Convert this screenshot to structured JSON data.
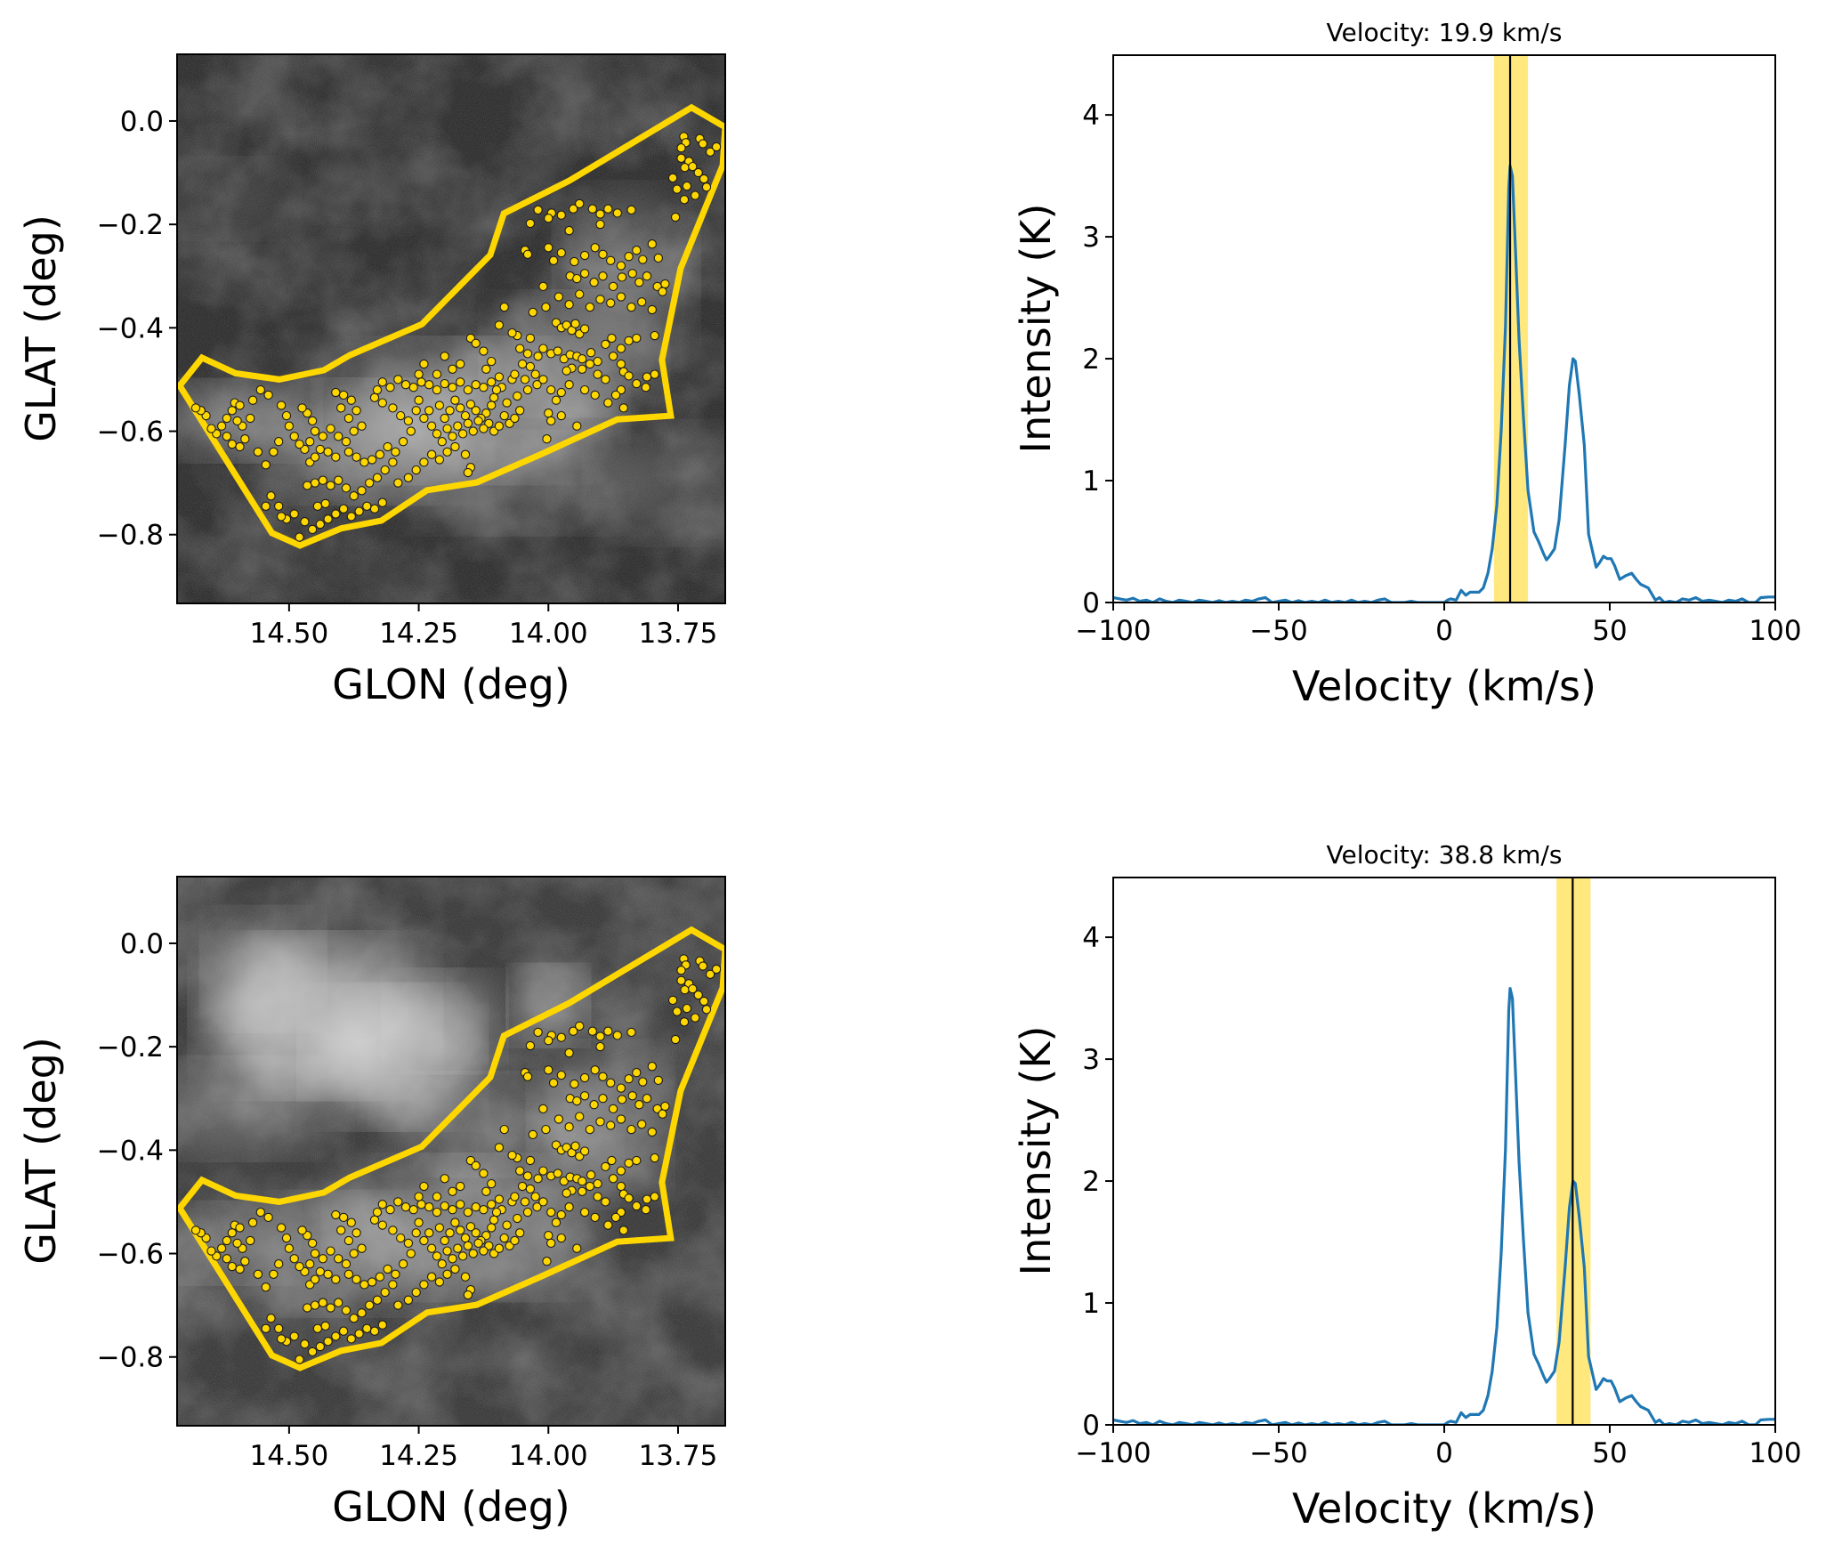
{
  "figure": {
    "panels": 4,
    "layout": "2 rows x 2 columns: left = GLON/GLAT map with region polygon and sources, right = velocity spectrum"
  },
  "chart_data": [
    {
      "id": "map-top",
      "type": "scatter",
      "title": "",
      "xlabel": "GLON (deg)",
      "ylabel": "GLAT (deg)",
      "xlim": [
        14.716,
        13.659
      ],
      "ylim": [
        -0.933,
        0.129
      ],
      "x_inverted": true,
      "xticks": [
        14.5,
        14.25,
        14.0,
        13.75
      ],
      "xtick_labels": [
        "14.50",
        "14.25",
        "14.00",
        "13.75"
      ],
      "yticks": [
        0.0,
        -0.2,
        -0.4,
        -0.6,
        -0.8
      ],
      "ytick_labels": [
        "0.0",
        "−0.2",
        "−0.4",
        "−0.6",
        "−0.8"
      ],
      "background": "grayscale integrated intensity map (channel near 19.9 km/s), emission concentrated inside polygon",
      "background_variant": "low",
      "polygon_color": "#FFD700",
      "marker_color": "#FFD700",
      "marker_edge": "#1a1a1a"
    },
    {
      "id": "spectrum-top",
      "type": "line",
      "title": "Velocity: 19.9 km/s",
      "xlabel": "Velocity (km/s)",
      "ylabel": "Intensity (K)",
      "xlim": [
        -100,
        100
      ],
      "ylim": [
        0,
        4.49
      ],
      "xticks": [
        -100,
        -50,
        0,
        50,
        100
      ],
      "xtick_labels": [
        "−100",
        "−50",
        "0",
        "50",
        "100"
      ],
      "yticks": [
        0,
        1,
        2,
        3,
        4
      ],
      "ytick_labels": [
        "0",
        "1",
        "2",
        "3",
        "4"
      ],
      "line_color": "#1f77b4",
      "vline": 19.9,
      "vline_color": "#000000",
      "band": [
        15.0,
        25.3
      ],
      "band_color": "#FFE97F"
    },
    {
      "id": "map-bottom",
      "type": "scatter",
      "title": "",
      "xlabel": "GLON (deg)",
      "ylabel": "GLAT (deg)",
      "xlim": [
        14.716,
        13.659
      ],
      "ylim": [
        -0.933,
        0.129
      ],
      "x_inverted": true,
      "xticks": [
        14.5,
        14.25,
        14.0,
        13.75
      ],
      "xtick_labels": [
        "14.50",
        "14.25",
        "14.00",
        "13.75"
      ],
      "yticks": [
        0.0,
        -0.2,
        -0.4,
        -0.6,
        -0.8
      ],
      "ytick_labels": [
        "0.0",
        "−0.2",
        "−0.4",
        "−0.6",
        "−0.8"
      ],
      "background": "grayscale integrated intensity map (channel near 38.8 km/s), bright emission in upper-left outside polygon",
      "background_variant": "high",
      "polygon_color": "#FFD700",
      "marker_color": "#FFD700",
      "marker_edge": "#1a1a1a"
    },
    {
      "id": "spectrum-bottom",
      "type": "line",
      "title": "Velocity: 38.8 km/s",
      "xlabel": "Velocity (km/s)",
      "ylabel": "Intensity (K)",
      "xlim": [
        -100,
        100
      ],
      "ylim": [
        0,
        4.49
      ],
      "xticks": [
        -100,
        -50,
        0,
        50,
        100
      ],
      "xtick_labels": [
        "−100",
        "−50",
        "0",
        "50",
        "100"
      ],
      "yticks": [
        0,
        1,
        2,
        3,
        4
      ],
      "ytick_labels": [
        "0",
        "1",
        "2",
        "3",
        "4"
      ],
      "line_color": "#1f77b4",
      "vline": 38.8,
      "vline_color": "#000000",
      "band": [
        33.9,
        44.2
      ],
      "band_color": "#FFE97F"
    }
  ],
  "region_polygon": [
    [
      13.724,
      0.026
    ],
    [
      13.659,
      -0.012
    ],
    [
      13.664,
      -0.086
    ],
    [
      13.745,
      -0.285
    ],
    [
      13.781,
      -0.462
    ],
    [
      13.764,
      -0.57
    ],
    [
      13.867,
      -0.577
    ],
    [
      14.013,
      -0.644
    ],
    [
      14.138,
      -0.699
    ],
    [
      14.234,
      -0.714
    ],
    [
      14.322,
      -0.773
    ],
    [
      14.4,
      -0.788
    ],
    [
      14.479,
      -0.821
    ],
    [
      14.533,
      -0.797
    ],
    [
      14.711,
      -0.512
    ],
    [
      14.668,
      -0.458
    ],
    [
      14.603,
      -0.488
    ],
    [
      14.519,
      -0.5
    ],
    [
      14.433,
      -0.482
    ],
    [
      14.383,
      -0.453
    ],
    [
      14.244,
      -0.393
    ],
    [
      14.112,
      -0.259
    ],
    [
      14.086,
      -0.179
    ],
    [
      13.959,
      -0.115
    ]
  ],
  "sources": [
    [
      13.739,
      -0.03
    ],
    [
      13.735,
      -0.042
    ],
    [
      13.744,
      -0.052
    ],
    [
      13.708,
      -0.034
    ],
    [
      13.702,
      -0.044
    ],
    [
      13.688,
      -0.06
    ],
    [
      13.676,
      -0.05
    ],
    [
      13.744,
      -0.072
    ],
    [
      13.729,
      -0.078
    ],
    [
      13.737,
      -0.09
    ],
    [
      13.722,
      -0.088
    ],
    [
      13.711,
      -0.1
    ],
    [
      13.7,
      -0.112
    ],
    [
      13.752,
      -0.132
    ],
    [
      13.738,
      -0.152
    ],
    [
      13.717,
      -0.144
    ],
    [
      13.695,
      -0.128
    ],
    [
      13.755,
      -0.186
    ],
    [
      13.733,
      -0.126
    ],
    [
      13.76,
      -0.11
    ],
    [
      13.94,
      -0.16
    ],
    [
      13.952,
      -0.17
    ],
    [
      13.975,
      -0.182
    ],
    [
      13.994,
      -0.178
    ],
    [
      14.0,
      -0.188
    ],
    [
      14.02,
      -0.172
    ],
    [
      14.035,
      -0.198
    ],
    [
      13.915,
      -0.17
    ],
    [
      13.9,
      -0.18
    ],
    [
      13.885,
      -0.17
    ],
    [
      13.867,
      -0.178
    ],
    [
      13.84,
      -0.172
    ],
    [
      13.96,
      -0.212
    ],
    [
      13.9,
      -0.2
    ],
    [
      14.045,
      -0.25
    ],
    [
      14.04,
      -0.258
    ],
    [
      14.0,
      -0.245
    ],
    [
      13.99,
      -0.27
    ],
    [
      13.975,
      -0.255
    ],
    [
      13.95,
      -0.272
    ],
    [
      13.93,
      -0.26
    ],
    [
      13.91,
      -0.245
    ],
    [
      13.895,
      -0.258
    ],
    [
      13.88,
      -0.27
    ],
    [
      13.86,
      -0.28
    ],
    [
      13.845,
      -0.262
    ],
    [
      13.83,
      -0.25
    ],
    [
      13.818,
      -0.268
    ],
    [
      13.8,
      -0.238
    ],
    [
      13.788,
      -0.265
    ],
    [
      13.958,
      -0.3
    ],
    [
      13.945,
      -0.305
    ],
    [
      13.93,
      -0.295
    ],
    [
      13.912,
      -0.312
    ],
    [
      13.895,
      -0.3
    ],
    [
      13.875,
      -0.32
    ],
    [
      13.858,
      -0.302
    ],
    [
      13.838,
      -0.295
    ],
    [
      13.825,
      -0.312
    ],
    [
      13.81,
      -0.3
    ],
    [
      13.79,
      -0.32
    ],
    [
      13.775,
      -0.315
    ],
    [
      14.01,
      -0.32
    ],
    [
      13.98,
      -0.34
    ],
    [
      13.96,
      -0.355
    ],
    [
      13.94,
      -0.335
    ],
    [
      13.92,
      -0.36
    ],
    [
      13.9,
      -0.345
    ],
    [
      13.88,
      -0.352
    ],
    [
      13.86,
      -0.34
    ],
    [
      13.84,
      -0.36
    ],
    [
      13.82,
      -0.35
    ],
    [
      13.8,
      -0.365
    ],
    [
      13.78,
      -0.33
    ],
    [
      14.03,
      -0.37
    ],
    [
      14.005,
      -0.36
    ],
    [
      13.985,
      -0.39
    ],
    [
      13.975,
      -0.4
    ],
    [
      13.965,
      -0.395
    ],
    [
      13.955,
      -0.405
    ],
    [
      13.948,
      -0.392
    ],
    [
      13.94,
      -0.412
    ],
    [
      13.93,
      -0.402
    ],
    [
      14.085,
      -0.36
    ],
    [
      14.15,
      -0.42
    ],
    [
      14.14,
      -0.43
    ],
    [
      14.125,
      -0.445
    ],
    [
      14.06,
      -0.415
    ],
    [
      14.035,
      -0.42
    ],
    [
      14.01,
      -0.44
    ],
    [
      13.995,
      -0.45
    ],
    [
      13.982,
      -0.445
    ],
    [
      13.97,
      -0.46
    ],
    [
      13.958,
      -0.452
    ],
    [
      13.945,
      -0.455
    ],
    [
      13.935,
      -0.46
    ],
    [
      13.918,
      -0.448
    ],
    [
      13.905,
      -0.465
    ],
    [
      13.89,
      -0.432
    ],
    [
      13.878,
      -0.42
    ],
    [
      13.86,
      -0.47
    ],
    [
      13.855,
      -0.485
    ],
    [
      13.845,
      -0.493
    ],
    [
      13.83,
      -0.508
    ],
    [
      13.81,
      -0.495
    ],
    [
      13.795,
      -0.49
    ],
    [
      13.812,
      -0.515
    ],
    [
      13.955,
      -0.478
    ],
    [
      13.965,
      -0.483
    ],
    [
      14.04,
      -0.45
    ],
    [
      14.05,
      -0.47
    ],
    [
      14.07,
      -0.5
    ],
    [
      14.09,
      -0.515
    ],
    [
      14.105,
      -0.535
    ],
    [
      14.08,
      -0.545
    ],
    [
      14.06,
      -0.532
    ],
    [
      14.04,
      -0.52
    ],
    [
      14.022,
      -0.51
    ],
    [
      14.0,
      -0.565
    ],
    [
      13.995,
      -0.58
    ],
    [
      13.975,
      -0.57
    ],
    [
      13.945,
      -0.59
    ],
    [
      13.86,
      -0.52
    ],
    [
      13.855,
      -0.555
    ],
    [
      14.003,
      -0.615
    ],
    [
      14.11,
      -0.55
    ],
    [
      14.12,
      -0.565
    ],
    [
      14.13,
      -0.575
    ],
    [
      14.14,
      -0.56
    ],
    [
      14.15,
      -0.548
    ],
    [
      14.16,
      -0.57
    ],
    [
      14.17,
      -0.555
    ],
    [
      14.18,
      -0.54
    ],
    [
      14.19,
      -0.56
    ],
    [
      14.2,
      -0.575
    ],
    [
      14.21,
      -0.55
    ],
    [
      14.115,
      -0.585
    ],
    [
      14.125,
      -0.595
    ],
    [
      14.135,
      -0.58
    ],
    [
      14.145,
      -0.6
    ],
    [
      14.155,
      -0.585
    ],
    [
      14.165,
      -0.605
    ],
    [
      14.175,
      -0.59
    ],
    [
      14.185,
      -0.61
    ],
    [
      14.195,
      -0.595
    ],
    [
      14.205,
      -0.62
    ],
    [
      14.215,
      -0.605
    ],
    [
      14.105,
      -0.6
    ],
    [
      14.095,
      -0.59
    ],
    [
      14.085,
      -0.57
    ],
    [
      14.075,
      -0.585
    ],
    [
      14.065,
      -0.575
    ],
    [
      14.055,
      -0.56
    ],
    [
      14.1,
      -0.52
    ],
    [
      14.11,
      -0.505
    ],
    [
      14.125,
      -0.515
    ],
    [
      14.14,
      -0.51
    ],
    [
      14.155,
      -0.52
    ],
    [
      14.17,
      -0.505
    ],
    [
      14.185,
      -0.515
    ],
    [
      14.2,
      -0.508
    ],
    [
      14.215,
      -0.52
    ],
    [
      14.23,
      -0.51
    ],
    [
      14.245,
      -0.505
    ],
    [
      14.26,
      -0.515
    ],
    [
      14.275,
      -0.51
    ],
    [
      14.29,
      -0.5
    ],
    [
      14.305,
      -0.515
    ],
    [
      14.32,
      -0.505
    ],
    [
      14.33,
      -0.52
    ],
    [
      14.335,
      -0.535
    ],
    [
      14.32,
      -0.545
    ],
    [
      14.3,
      -0.555
    ],
    [
      14.285,
      -0.57
    ],
    [
      14.27,
      -0.58
    ],
    [
      14.255,
      -0.56
    ],
    [
      14.24,
      -0.575
    ],
    [
      14.225,
      -0.59
    ],
    [
      14.23,
      -0.56
    ],
    [
      14.25,
      -0.54
    ],
    [
      14.265,
      -0.6
    ],
    [
      14.28,
      -0.62
    ],
    [
      14.295,
      -0.64
    ],
    [
      14.31,
      -0.63
    ],
    [
      14.325,
      -0.645
    ],
    [
      14.34,
      -0.655
    ],
    [
      14.355,
      -0.66
    ],
    [
      14.37,
      -0.65
    ],
    [
      14.385,
      -0.64
    ],
    [
      14.3,
      -0.66
    ],
    [
      14.315,
      -0.675
    ],
    [
      14.33,
      -0.69
    ],
    [
      14.345,
      -0.7
    ],
    [
      14.36,
      -0.715
    ],
    [
      14.375,
      -0.725
    ],
    [
      14.39,
      -0.71
    ],
    [
      14.405,
      -0.695
    ],
    [
      14.42,
      -0.705
    ],
    [
      14.435,
      -0.695
    ],
    [
      14.45,
      -0.7
    ],
    [
      14.465,
      -0.705
    ],
    [
      14.29,
      -0.7
    ],
    [
      14.27,
      -0.69
    ],
    [
      14.255,
      -0.675
    ],
    [
      14.24,
      -0.66
    ],
    [
      14.225,
      -0.645
    ],
    [
      14.21,
      -0.655
    ],
    [
      14.195,
      -0.64
    ],
    [
      14.18,
      -0.63
    ],
    [
      14.16,
      -0.645
    ],
    [
      14.15,
      -0.67
    ],
    [
      14.155,
      -0.68
    ],
    [
      14.35,
      -0.745
    ],
    [
      14.365,
      -0.755
    ],
    [
      14.38,
      -0.765
    ],
    [
      14.395,
      -0.75
    ],
    [
      14.41,
      -0.76
    ],
    [
      14.425,
      -0.77
    ],
    [
      14.44,
      -0.78
    ],
    [
      14.455,
      -0.79
    ],
    [
      14.47,
      -0.775
    ],
    [
      14.48,
      -0.805
    ],
    [
      14.49,
      -0.76
    ],
    [
      14.505,
      -0.77
    ],
    [
      14.515,
      -0.765
    ],
    [
      14.32,
      -0.738
    ],
    [
      14.335,
      -0.75
    ],
    [
      14.43,
      -0.74
    ],
    [
      14.445,
      -0.745
    ],
    [
      14.38,
      -0.54
    ],
    [
      14.395,
      -0.53
    ],
    [
      14.41,
      -0.525
    ],
    [
      14.4,
      -0.555
    ],
    [
      14.385,
      -0.575
    ],
    [
      14.37,
      -0.56
    ],
    [
      14.36,
      -0.59
    ],
    [
      14.375,
      -0.6
    ],
    [
      14.39,
      -0.62
    ],
    [
      14.405,
      -0.61
    ],
    [
      14.42,
      -0.595
    ],
    [
      14.435,
      -0.61
    ],
    [
      14.45,
      -0.6
    ],
    [
      14.455,
      -0.58
    ],
    [
      14.465,
      -0.565
    ],
    [
      14.475,
      -0.555
    ],
    [
      14.46,
      -0.62
    ],
    [
      14.47,
      -0.635
    ],
    [
      14.48,
      -0.625
    ],
    [
      14.49,
      -0.61
    ],
    [
      14.5,
      -0.59
    ],
    [
      14.505,
      -0.57
    ],
    [
      14.515,
      -0.55
    ],
    [
      14.46,
      -0.66
    ],
    [
      14.45,
      -0.65
    ],
    [
      14.44,
      -0.635
    ],
    [
      14.425,
      -0.64
    ],
    [
      14.41,
      -0.65
    ],
    [
      14.52,
      -0.62
    ],
    [
      14.53,
      -0.64
    ],
    [
      14.545,
      -0.665
    ],
    [
      14.56,
      -0.64
    ],
    [
      14.575,
      -0.575
    ],
    [
      14.59,
      -0.59
    ],
    [
      14.6,
      -0.58
    ],
    [
      14.61,
      -0.56
    ],
    [
      14.62,
      -0.575
    ],
    [
      14.63,
      -0.59
    ],
    [
      14.64,
      -0.605
    ],
    [
      14.65,
      -0.595
    ],
    [
      14.66,
      -0.57
    ],
    [
      14.67,
      -0.56
    ],
    [
      14.68,
      -0.555
    ],
    [
      14.605,
      -0.545
    ],
    [
      14.595,
      -0.55
    ],
    [
      14.585,
      -0.615
    ],
    [
      14.595,
      -0.63
    ],
    [
      14.61,
      -0.625
    ],
    [
      14.62,
      -0.61
    ],
    [
      14.54,
      -0.53
    ],
    [
      14.555,
      -0.52
    ],
    [
      14.57,
      -0.54
    ],
    [
      14.535,
      -0.725
    ],
    [
      14.545,
      -0.745
    ],
    [
      14.52,
      -0.745
    ],
    [
      14.065,
      -0.49
    ],
    [
      14.045,
      -0.5
    ],
    [
      14.025,
      -0.49
    ],
    [
      14.01,
      -0.5
    ],
    [
      13.995,
      -0.52
    ],
    [
      13.985,
      -0.54
    ],
    [
      13.975,
      -0.525
    ],
    [
      13.96,
      -0.51
    ],
    [
      13.93,
      -0.52
    ],
    [
      13.91,
      -0.53
    ],
    [
      13.885,
      -0.545
    ],
    [
      13.87,
      -0.53
    ],
    [
      13.89,
      -0.5
    ],
    [
      13.905,
      -0.49
    ],
    [
      13.92,
      -0.47
    ],
    [
      13.935,
      -0.48
    ],
    [
      13.875,
      -0.455
    ],
    [
      13.86,
      -0.44
    ],
    [
      13.845,
      -0.425
    ],
    [
      13.83,
      -0.42
    ],
    [
      13.795,
      -0.415
    ],
    [
      14.11,
      -0.465
    ],
    [
      14.12,
      -0.48
    ],
    [
      14.095,
      -0.495
    ],
    [
      14.17,
      -0.47
    ],
    [
      14.185,
      -0.48
    ],
    [
      14.2,
      -0.455
    ],
    [
      14.215,
      -0.49
    ],
    [
      14.24,
      -0.47
    ],
    [
      14.25,
      -0.49
    ],
    [
      14.095,
      -0.395
    ],
    [
      14.07,
      -0.41
    ],
    [
      14.055,
      -0.44
    ],
    [
      14.02,
      -0.455
    ],
    [
      14.035,
      -0.475
    ]
  ]
}
